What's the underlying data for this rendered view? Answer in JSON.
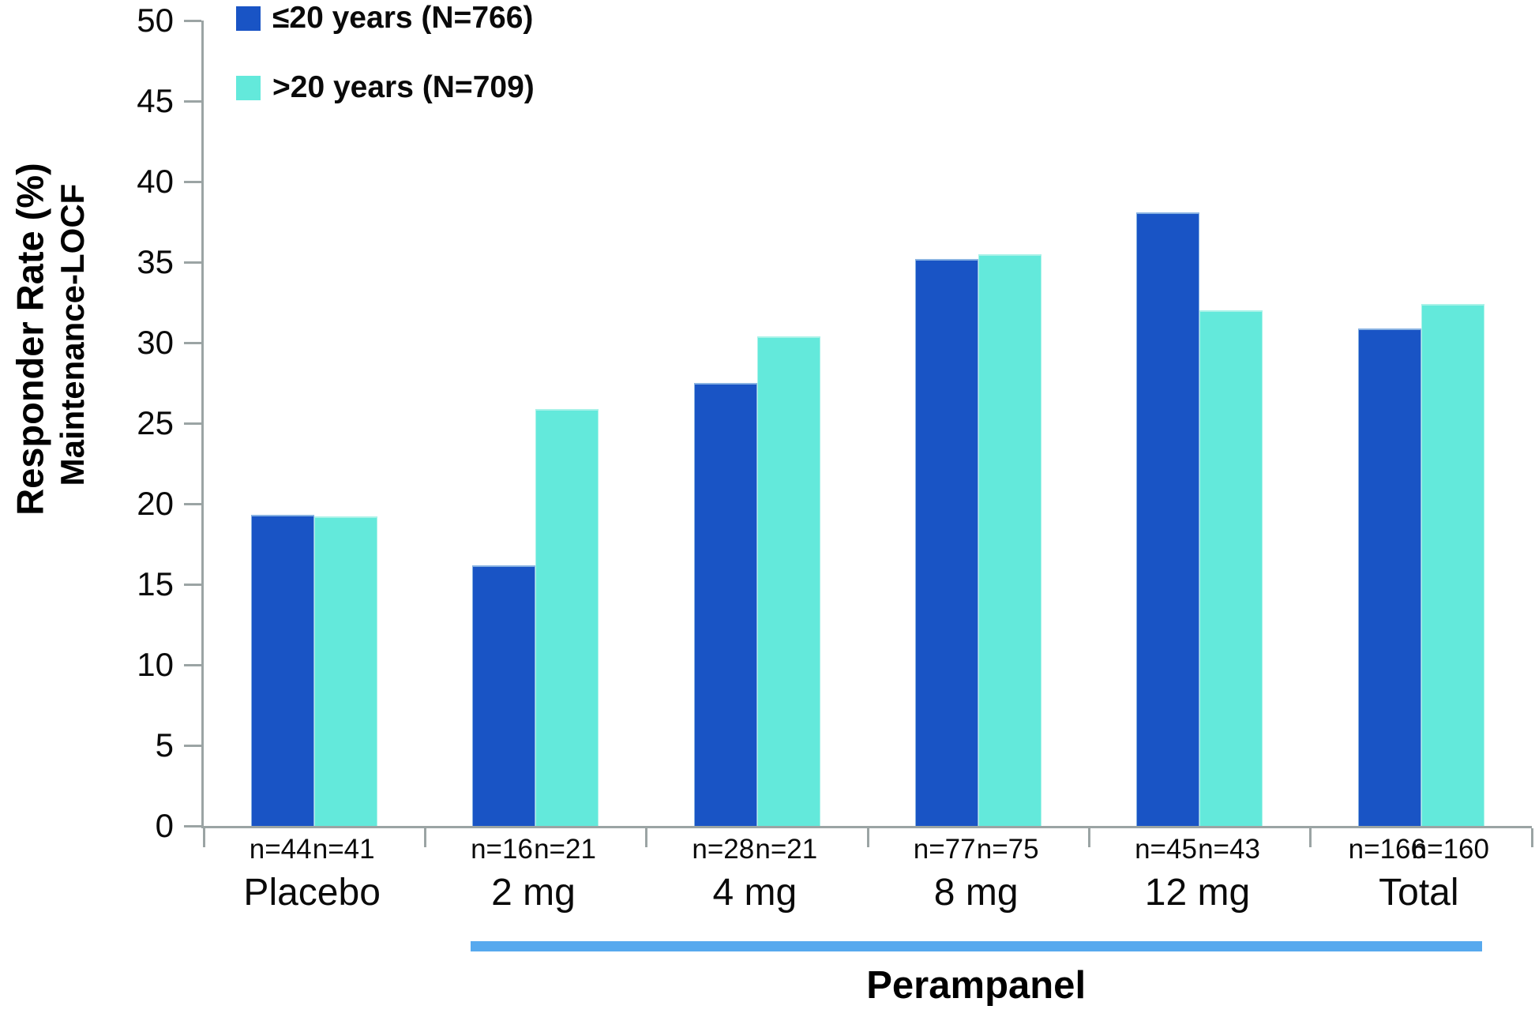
{
  "chart_data": {
    "type": "bar",
    "title": "",
    "ylabel_line1": "Responder Rate (%)",
    "ylabel_line2": "Maintenance-LOCF",
    "xlabel": "",
    "ylim": [
      0,
      50
    ],
    "yticks": [
      0,
      5,
      10,
      15,
      20,
      25,
      30,
      35,
      40,
      45,
      50
    ],
    "grid": false,
    "legend_position": "top-left",
    "categories": [
      "Placebo",
      "2 mg",
      "4 mg",
      "8 mg",
      "12 mg",
      "Total"
    ],
    "series": [
      {
        "name": "≤20 years (N=766)",
        "color": "#1954C5",
        "values": [
          19.3,
          16.2,
          27.5,
          35.2,
          38.1,
          30.9
        ],
        "n_labels": [
          "n=44",
          "n=16",
          "n=28",
          "n=77",
          "n=45",
          "n=166"
        ]
      },
      {
        "name": ">20 years (N=709)",
        "color": "#63E9DB",
        "values": [
          19.2,
          25.9,
          30.4,
          35.5,
          32.0,
          32.4
        ],
        "n_labels": [
          "n=41",
          "n=21",
          "n=21",
          "n=75",
          "n=43",
          "n=160"
        ]
      }
    ],
    "group_annotation": {
      "label": "Perampanel",
      "from_category": "2 mg",
      "to_category": "Total",
      "line_color": "#57A9EE"
    },
    "axis_color": "#9BA4A4"
  }
}
